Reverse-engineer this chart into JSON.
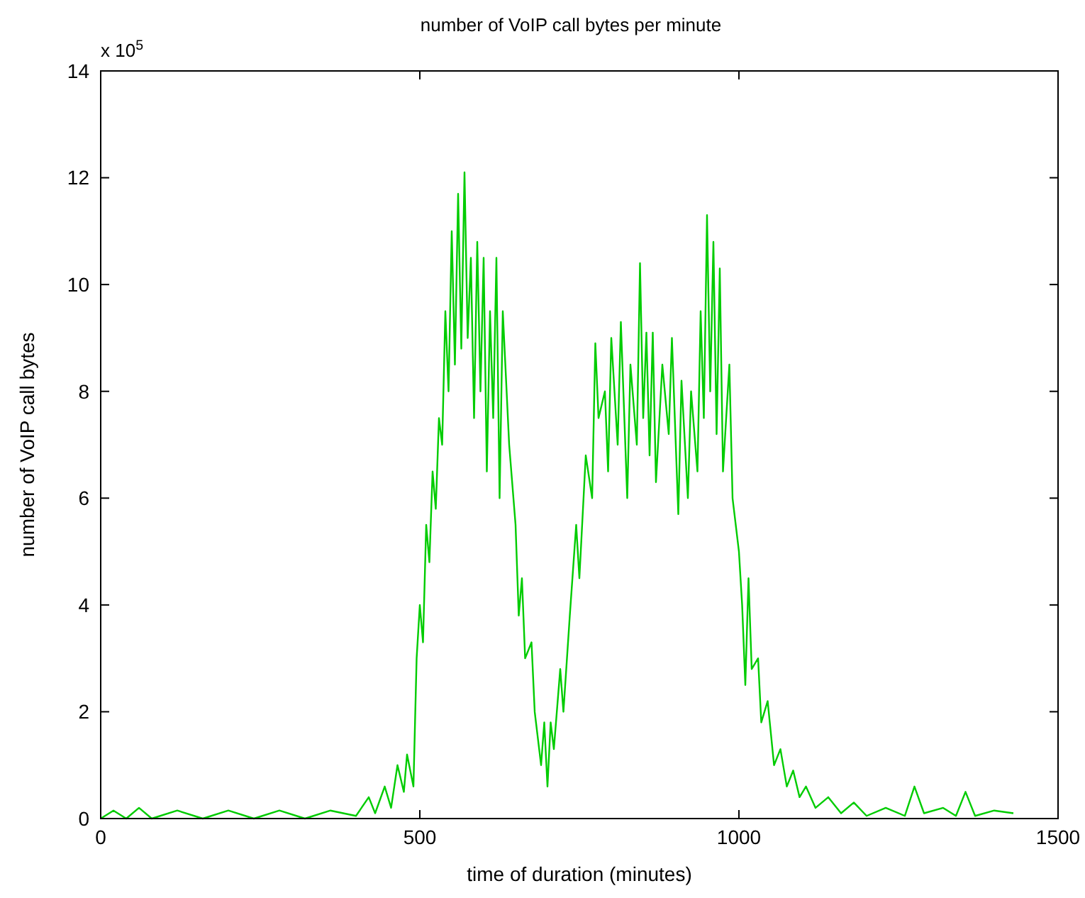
{
  "chart_data": {
    "type": "line",
    "title": "number of VoIP call bytes per minute",
    "xlabel": "time of duration (minutes)",
    "ylabel": "number of VoIP call bytes",
    "annotations": [
      "x 10$^{5}$"
    ],
    "x": [
      0,
      20,
      40,
      60,
      80,
      120,
      160,
      200,
      240,
      280,
      320,
      360,
      400,
      420,
      430,
      445,
      455,
      465,
      475,
      480,
      490,
      495,
      500,
      505,
      510,
      515,
      520,
      525,
      530,
      535,
      540,
      545,
      550,
      555,
      560,
      565,
      570,
      575,
      580,
      585,
      590,
      595,
      600,
      605,
      610,
      615,
      620,
      625,
      630,
      640,
      650,
      655,
      660,
      665,
      675,
      680,
      690,
      695,
      700,
      705,
      710,
      720,
      725,
      735,
      745,
      750,
      760,
      770,
      775,
      780,
      790,
      795,
      800,
      810,
      815,
      825,
      830,
      840,
      845,
      850,
      855,
      860,
      865,
      870,
      880,
      890,
      895,
      905,
      910,
      920,
      925,
      935,
      940,
      945,
      950,
      955,
      960,
      965,
      970,
      975,
      985,
      990,
      1000,
      1005,
      1010,
      1015,
      1020,
      1030,
      1035,
      1045,
      1055,
      1065,
      1075,
      1085,
      1095,
      1105,
      1120,
      1140,
      1160,
      1180,
      1200,
      1230,
      1260,
      1275,
      1290,
      1320,
      1340,
      1355,
      1370,
      1400,
      1430
    ],
    "series": [
      {
        "color": "#00cc00",
        "values": [
          0,
          0.15,
          0,
          0.2,
          0,
          0.15,
          0,
          0.15,
          0,
          0.15,
          0,
          0.15,
          0.05,
          0.4,
          0.1,
          0.6,
          0.2,
          1.0,
          0.5,
          1.2,
          0.6,
          3.0,
          4.0,
          3.3,
          5.5,
          4.8,
          6.5,
          5.8,
          7.5,
          7.0,
          9.5,
          8.0,
          11.0,
          8.5,
          11.7,
          8.8,
          12.1,
          9.0,
          10.5,
          7.5,
          10.8,
          8.0,
          10.5,
          6.5,
          9.5,
          7.5,
          10.5,
          6.0,
          9.5,
          7.0,
          5.5,
          3.8,
          4.5,
          3.0,
          3.3,
          2.0,
          1.0,
          1.8,
          0.6,
          1.8,
          1.3,
          2.8,
          2.0,
          3.8,
          5.5,
          4.5,
          6.8,
          6.0,
          8.9,
          7.5,
          8.0,
          6.5,
          9.0,
          7.0,
          9.3,
          6.0,
          8.5,
          7.0,
          10.4,
          7.5,
          9.1,
          6.8,
          9.1,
          6.3,
          8.5,
          7.2,
          9.0,
          5.7,
          8.2,
          6.0,
          8.0,
          6.5,
          9.5,
          7.5,
          11.3,
          8.0,
          10.8,
          7.2,
          10.3,
          6.5,
          8.5,
          6.0,
          5.0,
          4.0,
          2.5,
          4.5,
          2.8,
          3.0,
          1.8,
          2.2,
          1.0,
          1.3,
          0.6,
          0.9,
          0.4,
          0.6,
          0.2,
          0.4,
          0.1,
          0.3,
          0.05,
          0.2,
          0.05,
          0.6,
          0.1,
          0.2,
          0.05,
          0.5,
          0.05,
          0.15,
          0.1
        ]
      }
    ],
    "xlim": [
      0,
      1500
    ],
    "xticks": [
      0,
      500,
      1000,
      1500
    ],
    "ylim": [
      0,
      14
    ],
    "yticks": [
      0,
      2,
      4,
      6,
      8,
      10,
      12,
      14
    ],
    "grid": false,
    "marker": "none",
    "line_style": "solid"
  }
}
